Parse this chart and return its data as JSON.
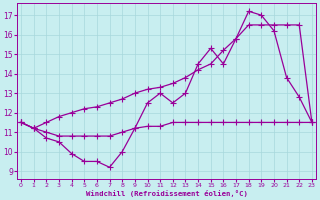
{
  "xlabel": "Windchill (Refroidissement éolien,°C)",
  "bg_color": "#c8eef0",
  "grid_color": "#a8d8dc",
  "line_color": "#990099",
  "x_ticks": [
    0,
    1,
    2,
    3,
    4,
    5,
    6,
    7,
    8,
    9,
    10,
    11,
    12,
    13,
    14,
    15,
    16,
    17,
    18,
    19,
    20,
    21,
    22,
    23
  ],
  "y_ticks": [
    9,
    10,
    11,
    12,
    13,
    14,
    15,
    16,
    17
  ],
  "xlim": [
    -0.3,
    23.3
  ],
  "ylim": [
    8.6,
    17.6
  ],
  "series1_x": [
    0,
    1,
    2,
    3,
    4,
    5,
    6,
    7,
    8,
    9,
    10,
    11,
    12,
    13,
    14,
    15,
    16,
    17,
    18,
    19,
    20,
    21,
    22,
    23
  ],
  "series1_y": [
    11.5,
    11.2,
    11.5,
    11.8,
    12.0,
    12.2,
    12.3,
    12.5,
    12.7,
    13.0,
    13.2,
    13.3,
    13.5,
    13.8,
    14.2,
    14.5,
    15.2,
    15.8,
    16.5,
    16.5,
    16.5,
    16.5,
    16.5,
    11.5
  ],
  "series2_x": [
    0,
    1,
    2,
    3,
    4,
    5,
    6,
    7,
    8,
    9,
    10,
    11,
    12,
    13,
    14,
    15,
    16,
    17,
    18,
    19,
    20,
    21,
    22,
    23
  ],
  "series2_y": [
    11.5,
    11.2,
    11.0,
    10.8,
    10.8,
    10.8,
    10.8,
    10.8,
    11.0,
    11.2,
    11.3,
    11.3,
    11.5,
    11.5,
    11.5,
    11.5,
    11.5,
    11.5,
    11.5,
    11.5,
    11.5,
    11.5,
    11.5,
    11.5
  ],
  "series3_x": [
    0,
    1,
    2,
    3,
    4,
    5,
    6,
    7,
    8,
    9,
    10,
    11,
    12,
    13,
    14,
    15,
    16,
    17,
    18,
    19,
    20,
    21,
    22,
    23
  ],
  "series3_y": [
    11.5,
    11.2,
    10.7,
    10.5,
    9.9,
    9.5,
    9.5,
    9.2,
    10.0,
    11.2,
    12.5,
    13.0,
    12.5,
    13.0,
    14.5,
    15.3,
    14.5,
    15.8,
    17.2,
    17.0,
    16.2,
    13.8,
    12.8,
    11.5
  ]
}
